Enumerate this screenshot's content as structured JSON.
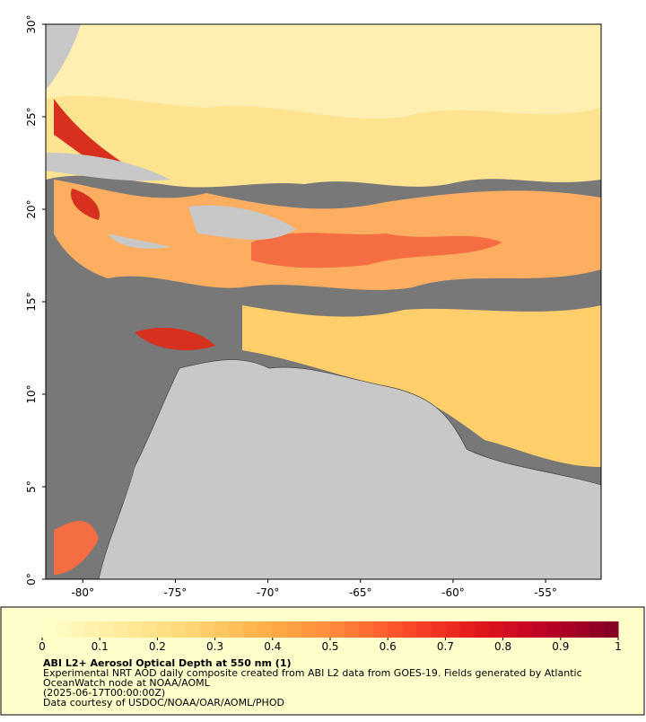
{
  "map": {
    "xlim": [
      -82,
      -52
    ],
    "ylim": [
      0,
      30
    ],
    "xticks": [
      {
        "value": -80,
        "label": "-80°"
      },
      {
        "value": -75,
        "label": "-75°"
      },
      {
        "value": -70,
        "label": "-70°"
      },
      {
        "value": -65,
        "label": "-65°"
      },
      {
        "value": -60,
        "label": "-60°"
      },
      {
        "value": -55,
        "label": "-55°"
      }
    ],
    "yticks": [
      {
        "value": 0,
        "label": "0°"
      },
      {
        "value": 5,
        "label": "5°"
      },
      {
        "value": 10,
        "label": "10°"
      },
      {
        "value": 15,
        "label": "15°"
      },
      {
        "value": 20,
        "label": "20°"
      },
      {
        "value": 25,
        "label": "25°"
      },
      {
        "value": 30,
        "label": "30°"
      }
    ]
  },
  "colorbar": {
    "range": [
      0,
      1
    ],
    "ticks": [
      0,
      0.1,
      0.2,
      0.3,
      0.4,
      0.5,
      0.6,
      0.7,
      0.8,
      0.9,
      1
    ],
    "colors": [
      "#ffffcc",
      "#ffeda0",
      "#fed976",
      "#feb24c",
      "#fd8d3c",
      "#fc4e2a",
      "#e31a1c",
      "#bd0026",
      "#800026"
    ]
  },
  "caption": {
    "title": "ABI L2+ Aerosol Optical Depth at 550 nm (1)",
    "lines": [
      "Experimental NRT AOD daily composite created from ABI L2 data from GOES-19. Fields generated by Atlantic",
      "OceanWatch node at NOAA/AOML",
      "(2025-06-17T00:00:00Z)",
      "Data courtesy of USDOC/NOAA/OAR/AOML/PHOD"
    ]
  }
}
